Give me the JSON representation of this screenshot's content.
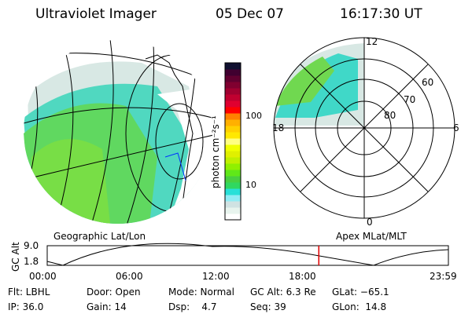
{
  "header": {
    "instrument": "Ultraviolet Imager",
    "date": "05 Dec 07",
    "time": "16:17:30 UT"
  },
  "colorbar": {
    "unit_label": "photon cm⁻²s⁻¹",
    "ticks": [
      "100",
      "10"
    ],
    "colors": [
      "#ffffff",
      "#e8f4ee",
      "#d0e2e2",
      "#90ecf4",
      "#28e0d8",
      "#30d860",
      "#48d040",
      "#60e818",
      "#90f000",
      "#c0f000",
      "#e0f000",
      "#f0ff00",
      "#ffff80",
      "#ffe800",
      "#ffd000",
      "#ffb000",
      "#ff8000",
      "#ff0000",
      "#e00030",
      "#c00030",
      "#a00030",
      "#800030",
      "#600030",
      "#400030",
      "#101030"
    ]
  },
  "left_panel": {
    "label": "Geographic Lat/Lon"
  },
  "right_panel": {
    "label": "Apex MLat/MLT",
    "mlt_labels": [
      "12",
      "18",
      "6",
      "0"
    ],
    "lat_labels": [
      "60",
      "70",
      "80"
    ]
  },
  "alt_plot": {
    "ylabel": "GC Alt",
    "yticks": [
      "9.0",
      "1.8"
    ],
    "xticks": [
      "00:00",
      "06:00",
      "12:00",
      "18:00",
      "23:59"
    ],
    "current_time_fraction": 0.677
  },
  "info": {
    "row1": [
      "Flt: LBHL",
      "Door: Open",
      "Mode: Normal",
      "GC Alt: 6.3 Re",
      "GLat: −65.1"
    ],
    "row2": [
      "IP: 36.0",
      "Gain: 14",
      "Dsp:    4.7",
      "Seq: 39",
      "GLon:  14.8"
    ]
  }
}
